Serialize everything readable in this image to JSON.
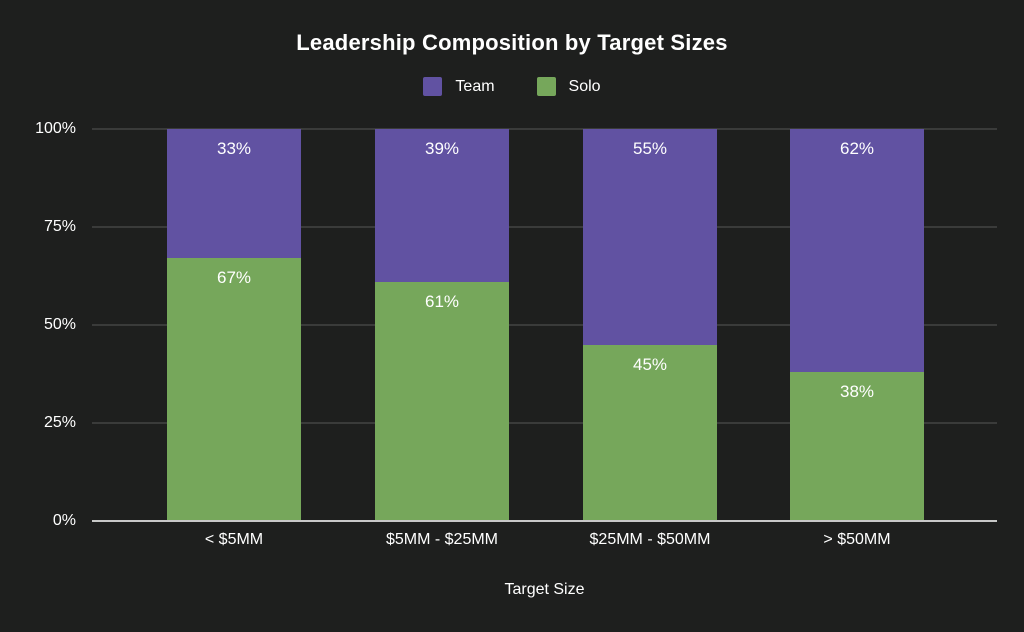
{
  "title": "Leadership Composition by Target Sizes",
  "colors": {
    "background": "#1e1f1e",
    "team": "#6152a2",
    "solo": "#76a75b",
    "gridline": "#3a3b3a",
    "baseline": "#c8c8c8",
    "text": "#ffffff"
  },
  "legend": {
    "items": [
      {
        "label": "Team",
        "color": "#6152a2"
      },
      {
        "label": "Solo",
        "color": "#76a75b"
      }
    ]
  },
  "chart_data": {
    "type": "bar",
    "stacked": true,
    "title": "Leadership Composition by Target Sizes",
    "xlabel": "Target Size",
    "ylabel": "",
    "ylim": [
      0,
      100
    ],
    "grid": true,
    "legend_position": "top",
    "categories": [
      "< $5MM",
      "$5MM - $25MM",
      "$25MM - $50MM",
      "> $50MM"
    ],
    "series": [
      {
        "name": "Team",
        "color": "#6152a2",
        "values": [
          33,
          39,
          55,
          62
        ]
      },
      {
        "name": "Solo",
        "color": "#76a75b",
        "values": [
          67,
          61,
          45,
          38
        ]
      }
    ],
    "value_label_format": "{value}%",
    "y_ticks": [
      "100%",
      "75%",
      "50%",
      "25%",
      "0%"
    ]
  }
}
